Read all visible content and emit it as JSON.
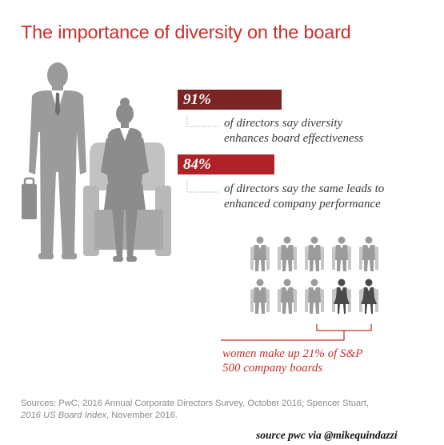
{
  "title": "The importance of diversity on the board",
  "stats": [
    {
      "value": "91%",
      "line1": "of directors say diversity",
      "line2": "enhances board effectiveness",
      "color": "#7a2424"
    },
    {
      "value": "84%",
      "line1": "of directors say the same leads to",
      "line2": "enhanced company performance",
      "color": "#ad2327"
    }
  ],
  "board": {
    "line1": "women make up 21% of S&P",
    "line2": "500 company boards",
    "total_seats": 10,
    "women_seats": 2,
    "women_fraction": 0.21,
    "accent_color": "#c9302c"
  },
  "sources": {
    "line1": "Sources: PwC, 2016 Annual Corporate Directors Survey, October 2016; Spencer Stuart,",
    "line2_italic": "2016 US Board Index",
    "line2_rest": ", November 2016."
  },
  "credit": "source pwc via @mikequindazzi",
  "colors": {
    "title": "#c9302c",
    "figure_gray": "#9b9b9b",
    "figure_dark": "#4a4a4a"
  }
}
